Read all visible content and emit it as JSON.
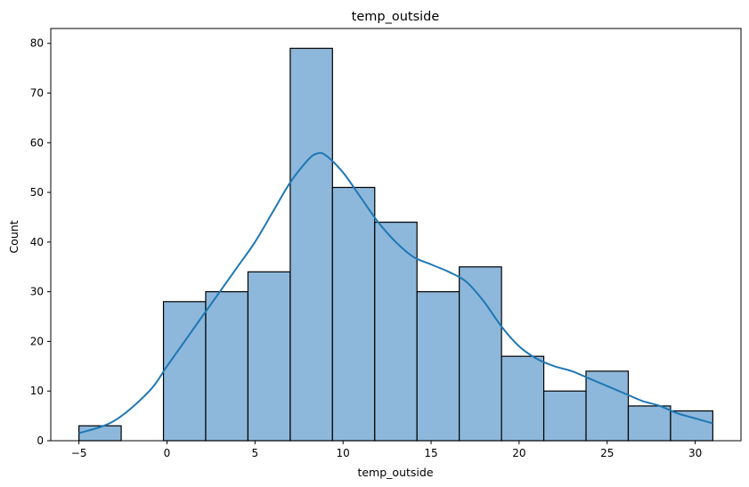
{
  "chart_data": {
    "type": "histogram",
    "title": "temp_outside",
    "xlabel": "temp_outside",
    "ylabel": "Count",
    "xlim": [
      -6.6,
      32.6
    ],
    "ylim": [
      0,
      83
    ],
    "xticks": [
      -5,
      0,
      5,
      10,
      15,
      20,
      25,
      30
    ],
    "yticks": [
      0,
      10,
      20,
      30,
      40,
      50,
      60,
      70,
      80
    ],
    "bins": [
      {
        "x0": -5.0,
        "x1": -2.6,
        "count": 3
      },
      {
        "x0": -2.6,
        "x1": -0.2,
        "count": 0
      },
      {
        "x0": -0.2,
        "x1": 2.2,
        "count": 28
      },
      {
        "x0": 2.2,
        "x1": 4.6,
        "count": 30
      },
      {
        "x0": 4.6,
        "x1": 7.0,
        "count": 34
      },
      {
        "x0": 7.0,
        "x1": 9.4,
        "count": 79
      },
      {
        "x0": 9.4,
        "x1": 11.8,
        "count": 51
      },
      {
        "x0": 11.8,
        "x1": 14.2,
        "count": 44
      },
      {
        "x0": 14.2,
        "x1": 16.6,
        "count": 30
      },
      {
        "x0": 16.6,
        "x1": 19.0,
        "count": 35
      },
      {
        "x0": 19.0,
        "x1": 21.4,
        "count": 17
      },
      {
        "x0": 21.4,
        "x1": 23.8,
        "count": 10
      },
      {
        "x0": 23.8,
        "x1": 26.2,
        "count": 14
      },
      {
        "x0": 26.2,
        "x1": 28.6,
        "count": 7
      },
      {
        "x0": 28.6,
        "x1": 31.0,
        "count": 6
      }
    ],
    "kde": {
      "x": [
        -5,
        -3,
        -1,
        0,
        1,
        2,
        3,
        4,
        5,
        6,
        7,
        8,
        8.5,
        9,
        10,
        11,
        12,
        13,
        14,
        15,
        16,
        17,
        18,
        19,
        20,
        21,
        22,
        23,
        24,
        25,
        26,
        27,
        28,
        29,
        30,
        31
      ],
      "y": [
        1.5,
        4,
        10,
        15,
        20,
        25,
        30,
        35,
        40,
        46,
        52,
        56.5,
        57.8,
        57.5,
        54,
        49,
        44,
        40,
        37,
        35.5,
        34,
        32,
        28,
        23,
        19,
        16.5,
        15,
        14,
        12.5,
        11,
        9.5,
        8,
        7,
        5.5,
        4.5,
        3.5
      ]
    },
    "colors": {
      "bar_fill": "#8db8db",
      "bar_edge": "#000000",
      "kde_line": "#1f77b4"
    },
    "grid": false,
    "legend": "none"
  }
}
